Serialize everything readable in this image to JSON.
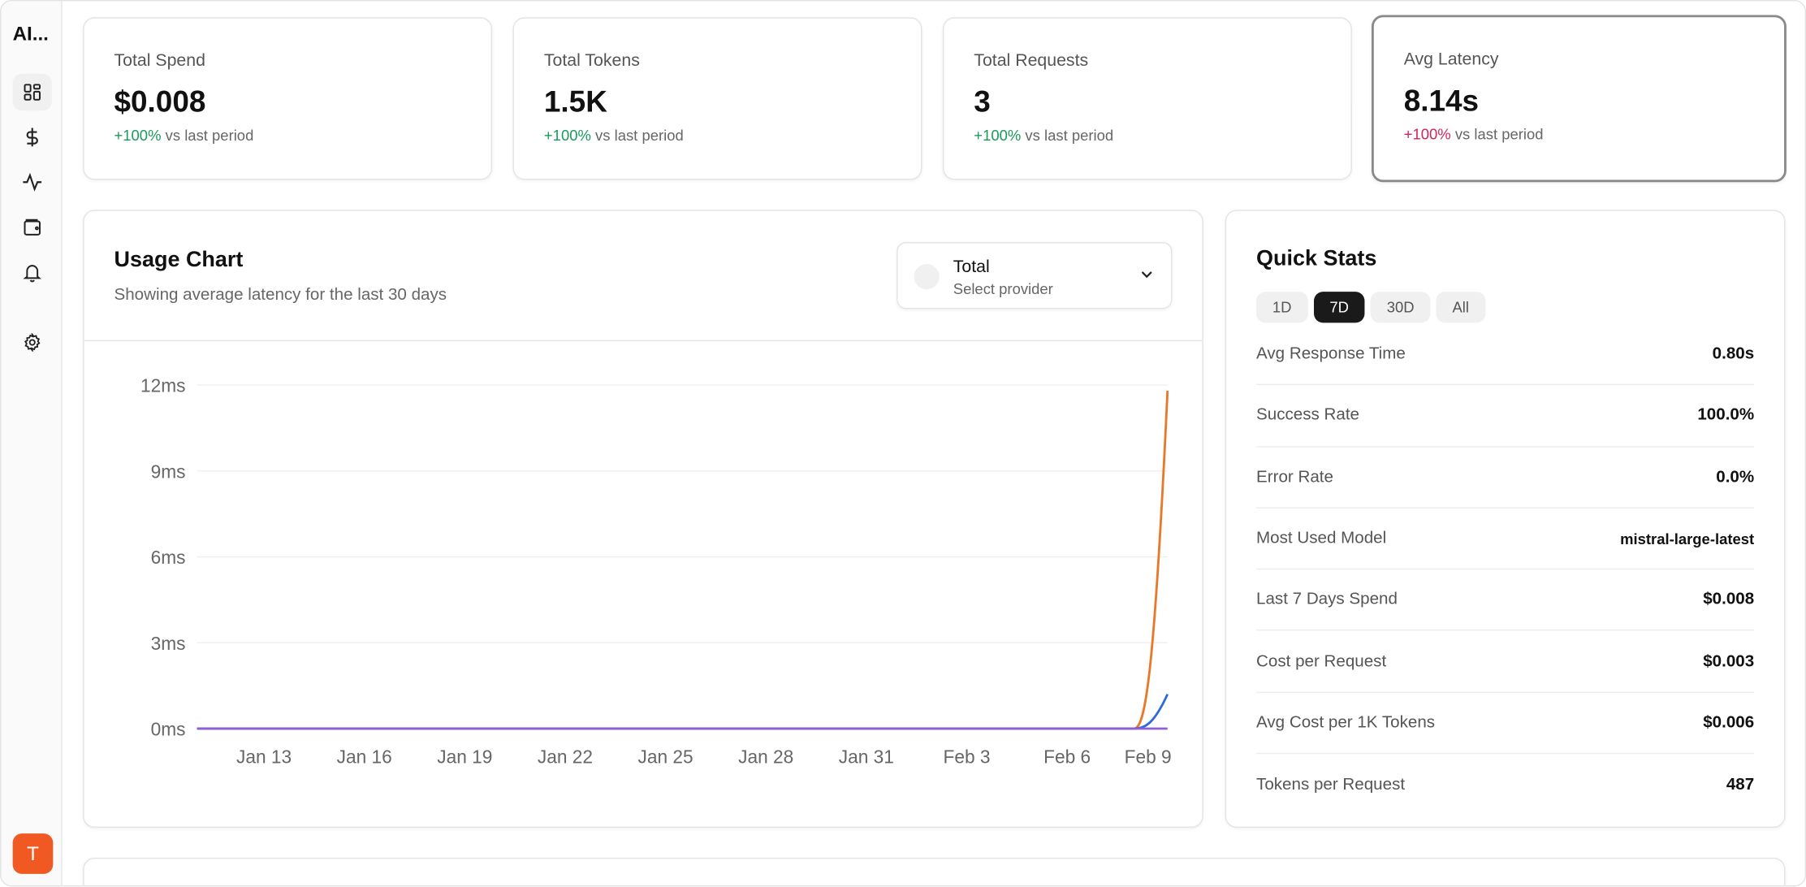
{
  "sidebar": {
    "brand": "AI...",
    "items": [
      {
        "icon": "dashboard-icon",
        "active": true
      },
      {
        "icon": "dollar-icon"
      },
      {
        "icon": "activity-icon"
      },
      {
        "icon": "wallet-icon"
      },
      {
        "icon": "bell-icon"
      },
      {
        "icon": "gear-icon"
      }
    ],
    "avatar": "T"
  },
  "stats": [
    {
      "label": "Total Spend",
      "value": "$0.008",
      "change": "+100%",
      "suffix": "vs last period",
      "trend": "up"
    },
    {
      "label": "Total Tokens",
      "value": "1.5K",
      "change": "+100%",
      "suffix": "vs last period",
      "trend": "up"
    },
    {
      "label": "Total Requests",
      "value": "3",
      "change": "+100%",
      "suffix": "vs last period",
      "trend": "up"
    },
    {
      "label": "Avg Latency",
      "value": "8.14s",
      "change": "+100%",
      "suffix": "vs last period",
      "trend": "down"
    }
  ],
  "usage": {
    "title": "Usage Chart",
    "subtitle": "Showing average latency for the last 30 days",
    "provider": {
      "value": "Total",
      "placeholder": "Select provider"
    }
  },
  "chart_data": {
    "type": "line",
    "x": [
      "Jan 11",
      "Jan 12",
      "Jan 13",
      "Jan 14",
      "Jan 15",
      "Jan 16",
      "Jan 17",
      "Jan 18",
      "Jan 19",
      "Jan 20",
      "Jan 21",
      "Jan 22",
      "Jan 23",
      "Jan 24",
      "Jan 25",
      "Jan 26",
      "Jan 27",
      "Jan 28",
      "Jan 29",
      "Jan 30",
      "Jan 31",
      "Feb 1",
      "Feb 2",
      "Feb 3",
      "Feb 4",
      "Feb 5",
      "Feb 6",
      "Feb 7",
      "Feb 8",
      "Feb 9"
    ],
    "xticks": [
      "Jan 13",
      "Jan 16",
      "Jan 19",
      "Jan 22",
      "Jan 25",
      "Jan 28",
      "Jan 31",
      "Feb 3",
      "Feb 6",
      "Feb 9"
    ],
    "yticks": [
      "0ms",
      "3ms",
      "6ms",
      "9ms",
      "12ms"
    ],
    "ylim": [
      0,
      12
    ],
    "grid": true,
    "series": [
      {
        "color": "#e8792b",
        "values": [
          0,
          0,
          0,
          0,
          0,
          0,
          0,
          0,
          0,
          0,
          0,
          0,
          0,
          0,
          0,
          0,
          0,
          0,
          0,
          0,
          0,
          0,
          0,
          0,
          0,
          0,
          0,
          0,
          0,
          11.8
        ]
      },
      {
        "color": "#2d6bd6",
        "values": [
          0,
          0,
          0,
          0,
          0,
          0,
          0,
          0,
          0,
          0,
          0,
          0,
          0,
          0,
          0,
          0,
          0,
          0,
          0,
          0,
          0,
          0,
          0,
          0,
          0,
          0,
          0,
          0,
          0,
          1.2
        ]
      },
      {
        "color": "#8e5fd8",
        "values": [
          0,
          0,
          0,
          0,
          0,
          0,
          0,
          0,
          0,
          0,
          0,
          0,
          0,
          0,
          0,
          0,
          0,
          0,
          0,
          0,
          0,
          0,
          0,
          0,
          0,
          0,
          0,
          0,
          0,
          0
        ]
      }
    ]
  },
  "quick_stats": {
    "title": "Quick Stats",
    "ranges": [
      "1D",
      "7D",
      "30D",
      "All"
    ],
    "selected": "7D",
    "rows": [
      {
        "label": "Avg Response Time",
        "value": "0.80s"
      },
      {
        "label": "Success Rate",
        "value": "100.0%"
      },
      {
        "label": "Error Rate",
        "value": "0.0%"
      },
      {
        "label": "Most Used Model",
        "value": "mistral-large-latest"
      },
      {
        "label": "Last 7 Days Spend",
        "value": "$0.008"
      },
      {
        "label": "Cost per Request",
        "value": "$0.003"
      },
      {
        "label": "Avg Cost per 1K Tokens",
        "value": "$0.006"
      },
      {
        "label": "Tokens per Request",
        "value": "487"
      }
    ]
  }
}
